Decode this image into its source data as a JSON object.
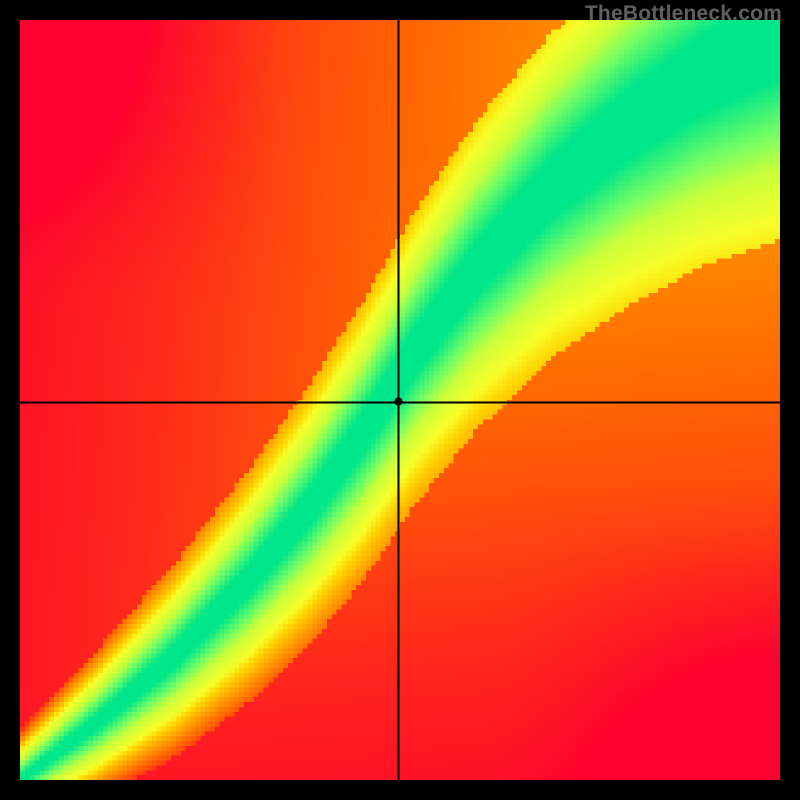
{
  "attribution": "TheBottleneck.com",
  "canvas_size": 800,
  "plot": {
    "outer_margin": 20,
    "inner_size": 760,
    "grid_n": 156,
    "background_color": "#000000",
    "crosshair_color": "#000000",
    "crosshair_width": 2,
    "crosshair": {
      "fx": 0.498,
      "fy": 0.498
    },
    "marker": {
      "fx": 0.498,
      "fy": 0.498,
      "radius": 4,
      "color": "#000000"
    },
    "ridge": {
      "comment": "normalized (0..1) control points of the green ridge centerline, y from bottom",
      "points": [
        [
          0.0,
          0.0
        ],
        [
          0.1,
          0.075
        ],
        [
          0.2,
          0.16
        ],
        [
          0.3,
          0.262
        ],
        [
          0.38,
          0.358
        ],
        [
          0.45,
          0.455
        ],
        [
          0.52,
          0.565
        ],
        [
          0.6,
          0.672
        ],
        [
          0.7,
          0.78
        ],
        [
          0.8,
          0.862
        ],
        [
          0.9,
          0.93
        ],
        [
          1.0,
          0.98
        ]
      ],
      "core_halfwidth_start": 0.005,
      "core_halfwidth_end": 0.055,
      "soft_halfwidth_start": 0.02,
      "soft_halfwidth_end": 0.12
    },
    "palette": {
      "comment": "score 0 = worst (red corners), 1 = best (green ridge)",
      "stops": [
        [
          0.0,
          "#ff0030"
        ],
        [
          0.18,
          "#ff2a1a"
        ],
        [
          0.38,
          "#ff6a00"
        ],
        [
          0.55,
          "#ffa000"
        ],
        [
          0.7,
          "#ffd400"
        ],
        [
          0.8,
          "#f6ff2a"
        ],
        [
          0.88,
          "#c8ff3a"
        ],
        [
          0.93,
          "#7cff60"
        ],
        [
          1.0,
          "#00e68a"
        ]
      ]
    }
  }
}
